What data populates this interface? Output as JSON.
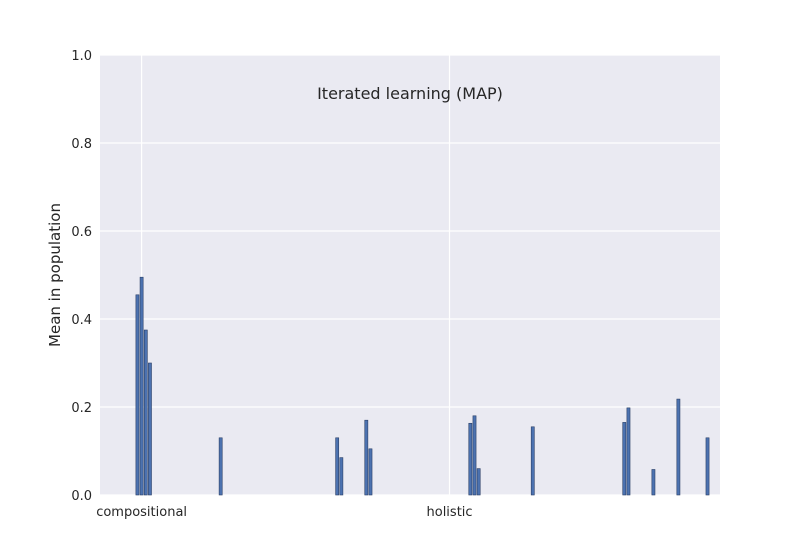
{
  "chart_data": {
    "type": "bar",
    "title": "Iterated learning (MAP)",
    "xlabel": "",
    "ylabel": "Mean in population",
    "ylim": [
      0,
      1.0
    ],
    "y_ticks": [
      "0.0",
      "0.2",
      "0.4",
      "0.6",
      "0.8",
      "1.0"
    ],
    "x_ticks": [
      {
        "index": 5,
        "label": "compositional"
      },
      {
        "index": 79,
        "label": "holistic"
      }
    ],
    "xlim": [
      -5,
      144
    ],
    "grid": true,
    "colors": {
      "bar": "#4c72b0",
      "bar_edge": "#2a3f66",
      "background": "#eaeaf2",
      "grid": "#ffffff"
    },
    "bars": [
      {
        "x": 4,
        "value": 0.455
      },
      {
        "x": 5,
        "value": 0.495
      },
      {
        "x": 6,
        "value": 0.375
      },
      {
        "x": 7,
        "value": 0.3
      },
      {
        "x": 24,
        "value": 0.13
      },
      {
        "x": 52,
        "value": 0.13
      },
      {
        "x": 53,
        "value": 0.085
      },
      {
        "x": 59,
        "value": 0.17
      },
      {
        "x": 60,
        "value": 0.105
      },
      {
        "x": 84,
        "value": 0.163
      },
      {
        "x": 85,
        "value": 0.18
      },
      {
        "x": 86,
        "value": 0.06
      },
      {
        "x": 99,
        "value": 0.155
      },
      {
        "x": 121,
        "value": 0.165
      },
      {
        "x": 122,
        "value": 0.198
      },
      {
        "x": 128,
        "value": 0.058
      },
      {
        "x": 134,
        "value": 0.218
      },
      {
        "x": 141,
        "value": 0.13
      }
    ]
  }
}
